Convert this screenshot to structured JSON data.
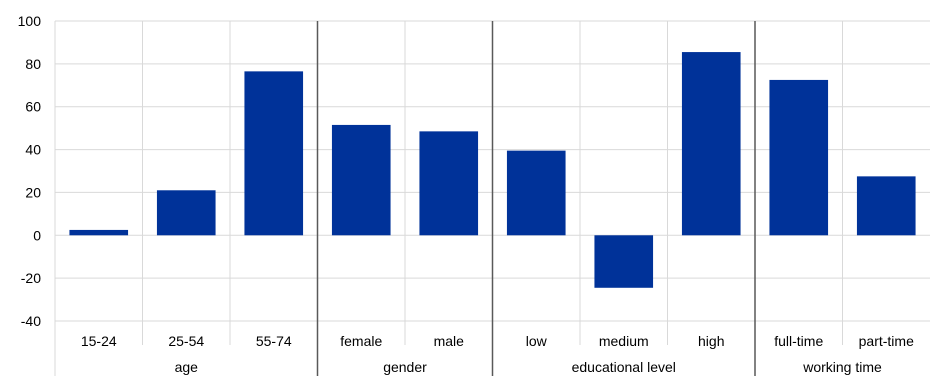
{
  "chart_data": {
    "type": "bar",
    "title": "",
    "xlabel": "",
    "ylabel": "",
    "ylim": [
      -40,
      100
    ],
    "yticks": [
      100,
      80,
      60,
      40,
      20,
      0,
      -20,
      -40
    ],
    "grid": true,
    "bar_color": "#003299",
    "groups": [
      {
        "label": "age",
        "categories": [
          "15-24",
          "25-54",
          "55-74"
        ],
        "values": [
          2.5,
          21,
          76.5
        ]
      },
      {
        "label": "gender",
        "categories": [
          "female",
          "male"
        ],
        "values": [
          51.5,
          48.5
        ]
      },
      {
        "label": "educational level",
        "categories": [
          "low",
          "medium",
          "high"
        ],
        "values": [
          39.5,
          -24.5,
          85.5
        ]
      },
      {
        "label": "working time",
        "categories": [
          "full-time",
          "part-time"
        ],
        "values": [
          72.5,
          27.5
        ]
      }
    ]
  }
}
